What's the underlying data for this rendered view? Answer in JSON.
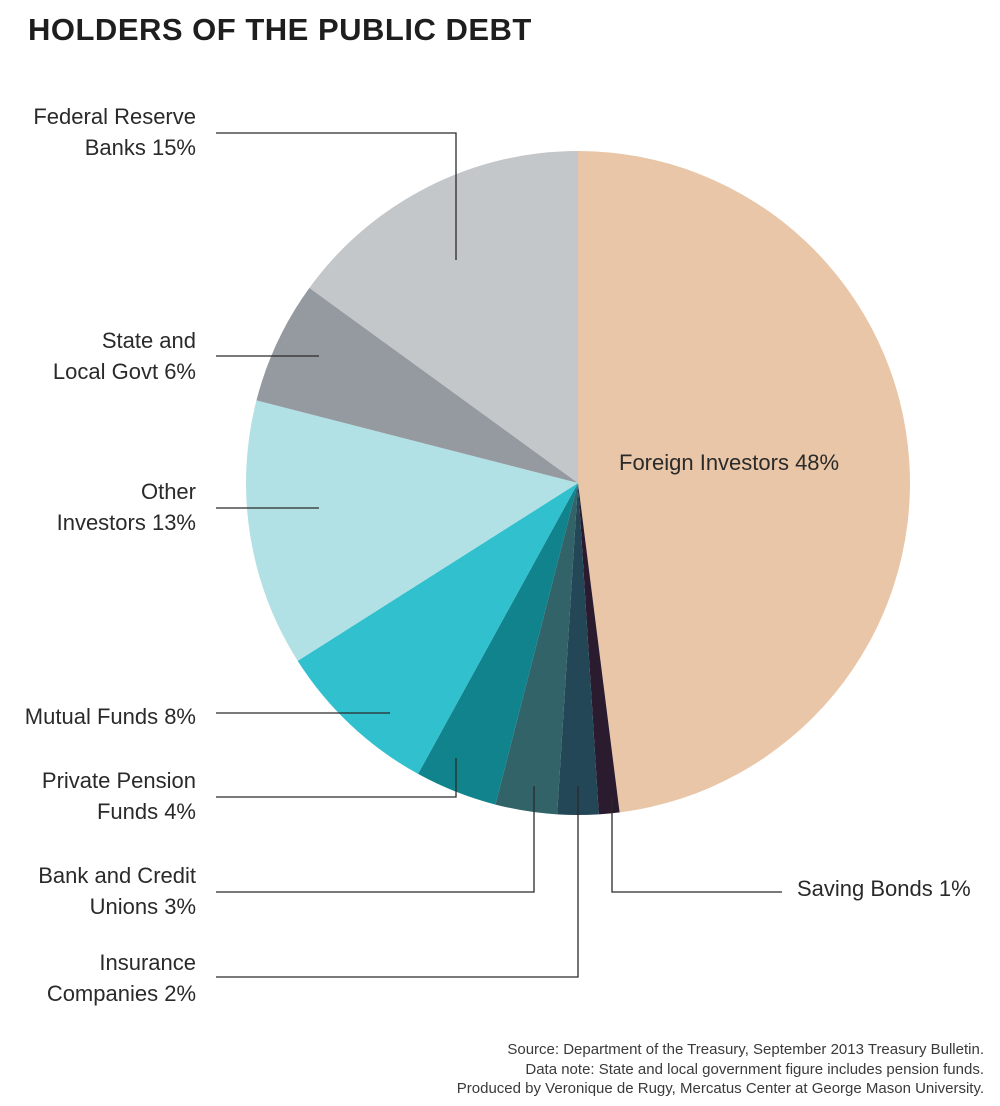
{
  "chart_data": {
    "type": "pie",
    "title": "HOLDERS OF THE PUBLIC DEBT",
    "slices": [
      {
        "label_lines": [
          "Foreign Investors 48%"
        ],
        "value": 48,
        "color": "#e9c6a7"
      },
      {
        "label_lines": [
          "Saving Bonds 1%"
        ],
        "value": 1,
        "color": "#2a1b2e"
      },
      {
        "label_lines": [
          "Insurance",
          "Companies 2%"
        ],
        "value": 2,
        "color": "#234757"
      },
      {
        "label_lines": [
          "Bank and Credit",
          "Unions 3%"
        ],
        "value": 3,
        "color": "#316369"
      },
      {
        "label_lines": [
          "Private Pension",
          "Funds 4%"
        ],
        "value": 4,
        "color": "#10838c"
      },
      {
        "label_lines": [
          "Mutual Funds 8%"
        ],
        "value": 8,
        "color": "#30c0ce"
      },
      {
        "label_lines": [
          "Other",
          "Investors 13%"
        ],
        "value": 13,
        "color": "#b1e1e5"
      },
      {
        "label_lines": [
          "State and",
          "Local Govt 6%"
        ],
        "value": 6,
        "color": "#949aa0"
      },
      {
        "label_lines": [
          "Federal Reserve",
          "Banks 15%"
        ],
        "value": 15,
        "color": "#c3c7ca"
      }
    ]
  },
  "footnotes": [
    "Source: Department of the Treasury, September 2013 Treasury Bulletin.",
    "Data note: State and local government figure includes pension funds.",
    "Produced by Veronique de Rugy, Mercatus Center at George Mason University."
  ]
}
